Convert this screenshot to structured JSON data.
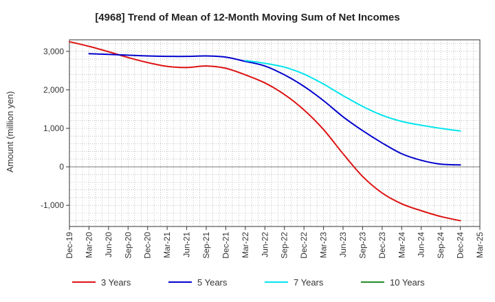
{
  "chart_data": {
    "type": "line",
    "title": "[4968]  Trend of Mean of 12-Month Moving Sum of Net Incomes",
    "xlabel": "",
    "ylabel": "Amount (million yen)",
    "ylim": [
      -1550,
      3300
    ],
    "yticks": [
      -1000,
      0,
      1000,
      2000,
      3000
    ],
    "ytick_labels": [
      "-1,000",
      "0",
      "1,000",
      "2,000",
      "3,000"
    ],
    "grid": true,
    "legend_position": "bottom",
    "categories": [
      "Dec-19",
      "Mar-20",
      "Jun-20",
      "Sep-20",
      "Dec-20",
      "Mar-21",
      "Jun-21",
      "Sep-21",
      "Dec-21",
      "Mar-22",
      "Jun-22",
      "Sep-22",
      "Dec-22",
      "Mar-23",
      "Jun-23",
      "Sep-23",
      "Dec-23",
      "Mar-24",
      "Jun-24",
      "Sep-24",
      "Dec-24",
      "Mar-25"
    ],
    "series": [
      {
        "name": "3 Years",
        "color": "#dd1111",
        "values": [
          3250,
          3130,
          2990,
          2840,
          2710,
          2610,
          2580,
          2620,
          2560,
          2390,
          2180,
          1880,
          1480,
          970,
          340,
          -250,
          -680,
          -960,
          -1140,
          -1290,
          -1400,
          null
        ]
      },
      {
        "name": "5 Years",
        "color": "#0000cc",
        "values": [
          null,
          2940,
          2920,
          2900,
          2880,
          2870,
          2870,
          2880,
          2850,
          2740,
          2620,
          2390,
          2090,
          1720,
          1300,
          940,
          620,
          340,
          170,
          70,
          50,
          null
        ]
      },
      {
        "name": "7 Years",
        "color": "#00e5ee",
        "values": [
          null,
          null,
          null,
          null,
          null,
          null,
          null,
          null,
          null,
          2760,
          2690,
          2590,
          2410,
          2150,
          1850,
          1570,
          1340,
          1180,
          1080,
          1000,
          930,
          null
        ]
      },
      {
        "name": "10 Years",
        "color": "#228b22",
        "values": [
          null,
          null,
          null,
          null,
          null,
          null,
          null,
          null,
          null,
          null,
          null,
          null,
          null,
          null,
          null,
          null,
          null,
          null,
          null,
          null,
          null,
          null
        ]
      }
    ]
  }
}
